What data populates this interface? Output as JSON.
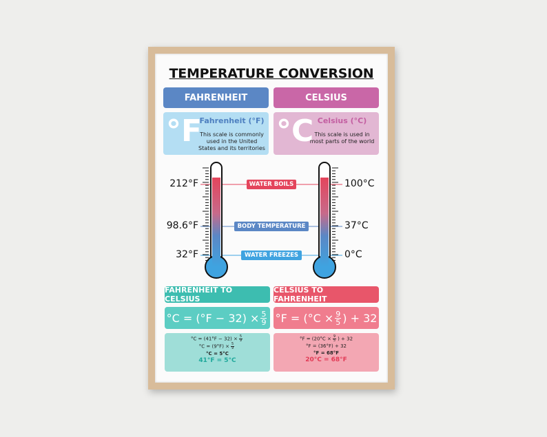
{
  "title": "TEMPERATURE CONVERSION",
  "fahrenheit": {
    "header": "FAHRENHEIT",
    "symbol": "°F",
    "label": "Fahrenheit (°F)",
    "description": "This scale is commonly used in the United States and its territories"
  },
  "celsius": {
    "header": "CELSIUS",
    "symbol": "°C",
    "label": "Celsius (°C)",
    "description": "This scale is used in most parts of the world"
  },
  "thermometer": {
    "fahrenheit_labels": [
      "212°F",
      "98.6°F",
      "32°F"
    ],
    "celsius_labels": [
      "100°C",
      "37°C",
      "0°C"
    ],
    "events": [
      "WATER BOILS",
      "BODY TEMPERATURE",
      "WATER FREEZES"
    ]
  },
  "f_to_c": {
    "header": "FAHRENHEIT TO CELSIUS",
    "formula": {
      "text": "°C = (°F − 32) ×",
      "num": "5",
      "den": "9",
      "tail": ""
    },
    "steps": [
      {
        "text": "°C = (41°F − 32) ×",
        "num": "5",
        "den": "9"
      },
      {
        "text": "°C = (9°F) ×",
        "num": "5",
        "den": "9"
      },
      {
        "text": "°C = 5°C"
      }
    ],
    "result": "41°F = 5°C"
  },
  "c_to_f": {
    "header": "CELSIUS TO FAHRENHEIT",
    "formula": {
      "text": "°F = (°C ×",
      "num": "9",
      "den": "5",
      "tail": ") + 32"
    },
    "steps": [
      {
        "text": "°F = (20°C ×",
        "num": "9",
        "den": "5",
        "tail": ") + 32"
      },
      {
        "text": "°F = (36°F) + 32"
      },
      {
        "text": "°F = 68°F"
      }
    ],
    "result": "20°C = 68°F"
  }
}
